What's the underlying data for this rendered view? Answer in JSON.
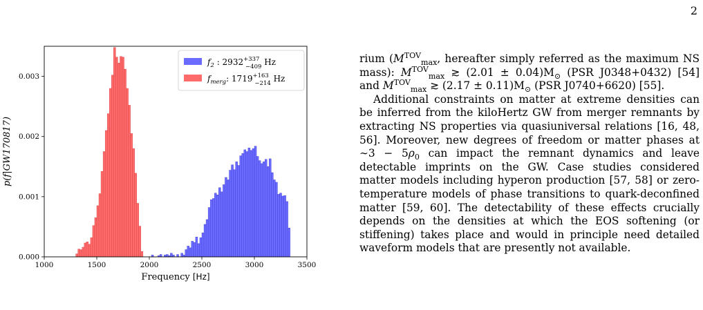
{
  "page": {
    "number": "2"
  },
  "chart_data": {
    "type": "histogram",
    "xlabel": "Frequency [Hz]",
    "ylabel": "p(f|GW170817)",
    "xlim": [
      1000,
      3500
    ],
    "ylim": [
      0,
      0.0035
    ],
    "xticks": [
      "1000",
      "1500",
      "2000",
      "2500",
      "3000",
      "3500"
    ],
    "yticks": [
      "0.000",
      "0.001",
      "0.002",
      "0.003"
    ],
    "legend_position": "top-right",
    "grid": false,
    "bin_width": 20,
    "series": [
      {
        "name": "f_2 : 2932 (+337/-409) Hz",
        "legend": {
          "symbol": "f",
          "sub": "2",
          "text": " : 2932",
          "sup": "+337",
          "subval": "−409",
          "unit": " Hz"
        },
        "color": "#6b6bff",
        "x": [
          2030,
          2050,
          2070,
          2090,
          2110,
          2130,
          2150,
          2170,
          2190,
          2210,
          2230,
          2250,
          2270,
          2290,
          2310,
          2330,
          2350,
          2370,
          2390,
          2410,
          2430,
          2450,
          2470,
          2490,
          2510,
          2530,
          2550,
          2570,
          2590,
          2610,
          2630,
          2650,
          2670,
          2690,
          2710,
          2730,
          2750,
          2770,
          2790,
          2810,
          2830,
          2850,
          2870,
          2890,
          2910,
          2930,
          2950,
          2970,
          2990,
          3010,
          3030,
          3050,
          3070,
          3090,
          3110,
          3130,
          3150,
          3170,
          3190,
          3210,
          3230,
          3250,
          3270,
          3290,
          3310,
          3330
        ],
        "values": [
          3e-05,
          0.0,
          0.0,
          2e-05,
          4e-05,
          0.0,
          3e-05,
          4e-05,
          2e-05,
          6e-05,
          3e-05,
          0.0,
          4e-05,
          0.0,
          6e-05,
          3e-05,
          0.00012,
          0.00018,
          0.00015,
          0.00026,
          0.00024,
          0.00033,
          0.00022,
          0.00032,
          0.0004,
          0.00054,
          0.00062,
          0.00082,
          0.00095,
          0.00097,
          0.00106,
          0.00103,
          0.00115,
          0.00108,
          0.0012,
          0.00132,
          0.00128,
          0.00144,
          0.00153,
          0.00145,
          0.00158,
          0.00152,
          0.00168,
          0.00172,
          0.00178,
          0.00175,
          0.00181,
          0.00177,
          0.0018,
          0.00184,
          0.00167,
          0.0016,
          0.00155,
          0.00158,
          0.00162,
          0.0015,
          0.00163,
          0.0014,
          0.00128,
          0.00124,
          0.00104,
          0.00106,
          0.00101,
          0.00102,
          0.00092,
          0.00048
        ]
      },
      {
        "name": "f_merg: 1719 (+163/-214) Hz",
        "legend": {
          "symbol": "f",
          "sub": "merg",
          "text": ": 1719",
          "sup": "+163",
          "subval": "−214",
          "unit": " Hz"
        },
        "color": "#ff6b6b",
        "x": [
          1310,
          1330,
          1350,
          1370,
          1390,
          1410,
          1430,
          1450,
          1470,
          1490,
          1510,
          1530,
          1550,
          1570,
          1590,
          1610,
          1630,
          1650,
          1670,
          1690,
          1710,
          1730,
          1750,
          1770,
          1790,
          1810,
          1830,
          1850,
          1870,
          1890,
          1910,
          1930
        ],
        "values": [
          5e-05,
          0.00013,
          0.00012,
          0.00016,
          0.00023,
          0.00025,
          0.00021,
          0.00032,
          0.00052,
          0.00065,
          0.00085,
          0.00105,
          0.00142,
          0.00175,
          0.0021,
          0.00238,
          0.0028,
          0.00302,
          0.00348,
          0.00332,
          0.00322,
          0.00333,
          0.00332,
          0.00312,
          0.0028,
          0.00252,
          0.00205,
          0.0018,
          0.00139,
          0.00089,
          0.00051,
          9e-05
        ]
      }
    ]
  },
  "text": {
    "p1": [
      {
        "t": "rium ("
      },
      {
        "t": "M",
        "i": true
      },
      {
        "t": "TOV",
        "sup": true
      },
      {
        "t": "max",
        "sub": true
      },
      {
        "t": ", hereafter simply referred as the maximum NS mass): "
      },
      {
        "t": "M",
        "i": true
      },
      {
        "t": "TOV",
        "sup": true
      },
      {
        "t": "max",
        "sub": true
      },
      {
        "t": " ≳ (2.01 ± 0.04)M"
      },
      {
        "t": "⊙",
        "sub": true
      },
      {
        "t": " (PSR J0348+0432) [54] and "
      },
      {
        "t": "M",
        "i": true
      },
      {
        "t": "TOV",
        "sup": true
      },
      {
        "t": "max",
        "sub": true
      },
      {
        "t": " ≳ (2.17 ± 0.11)M"
      },
      {
        "t": "⊙",
        "sub": true
      },
      {
        "t": " (PSR J0740+6620) [55]."
      }
    ],
    "p2": [
      {
        "t": "Additional constraints on matter at extreme densities can be inferred from the kiloHertz GW from merger remnants by extracting NS properties via quasiuniversal relations [16, 48, 56]. Moreover, new degrees of freedom or matter phases at ∼3 − 5"
      },
      {
        "t": "ρ",
        "i": true
      },
      {
        "t": "0",
        "sub": true
      },
      {
        "t": " can impact the remnant dynamics and leave detectable imprints on the GW. Case studies considered matter models including hyperon production [57, 58] or zero-temperature models of phase transitions to quark-deconfined matter [59, 60]. The detectability of these effects crucially depends on the densities at which the EOS softening (or stiffening) takes place and would in principle need detailed waveform models that are presently not available."
      }
    ]
  }
}
